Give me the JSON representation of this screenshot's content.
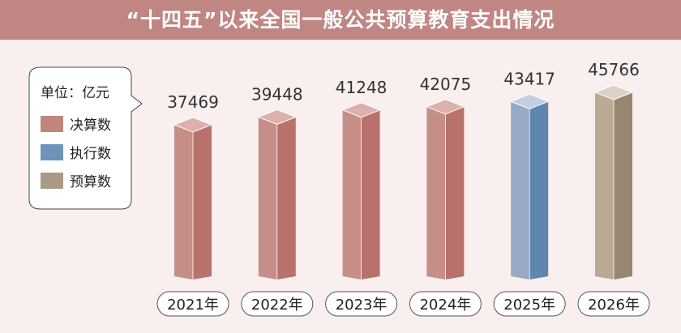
{
  "title": "“十四五”以来全国一般公共预算教育支出情况",
  "chart_data": {
    "type": "bar",
    "title": "“十四五”以来全国一般公共预算教育支出情况",
    "unit_label": "单位：亿元",
    "categories": [
      "2021年",
      "2022年",
      "2023年",
      "2024年",
      "2025年",
      "2026年"
    ],
    "values": [
      37469,
      39448,
      41248,
      42075,
      43417,
      45766
    ],
    "value_labels": [
      "37469",
      "39448",
      "41248",
      "42075",
      "43417",
      "45766"
    ],
    "kinds": [
      "决算数",
      "决算数",
      "决算数",
      "决算数",
      "执行数",
      "预算数"
    ],
    "legend": [
      {
        "name": "决算数",
        "color": "#c2857e"
      },
      {
        "name": "执行数",
        "color": "#6e93b8"
      },
      {
        "name": "预算数",
        "color": "#a99a86"
      }
    ],
    "legend_position": "left",
    "grid": false
  },
  "colors": {
    "决算数": {
      "left": "#c68e88",
      "right": "#b9726b",
      "top": "#dcb0ab"
    },
    "执行数": {
      "left": "#97a9c4",
      "right": "#5f86ad",
      "top": "#c0cfe2"
    },
    "预算数": {
      "left": "#baa995",
      "right": "#998670",
      "top": "#dcd1c4"
    },
    "header": "#c08683",
    "background": "#f8efee"
  }
}
